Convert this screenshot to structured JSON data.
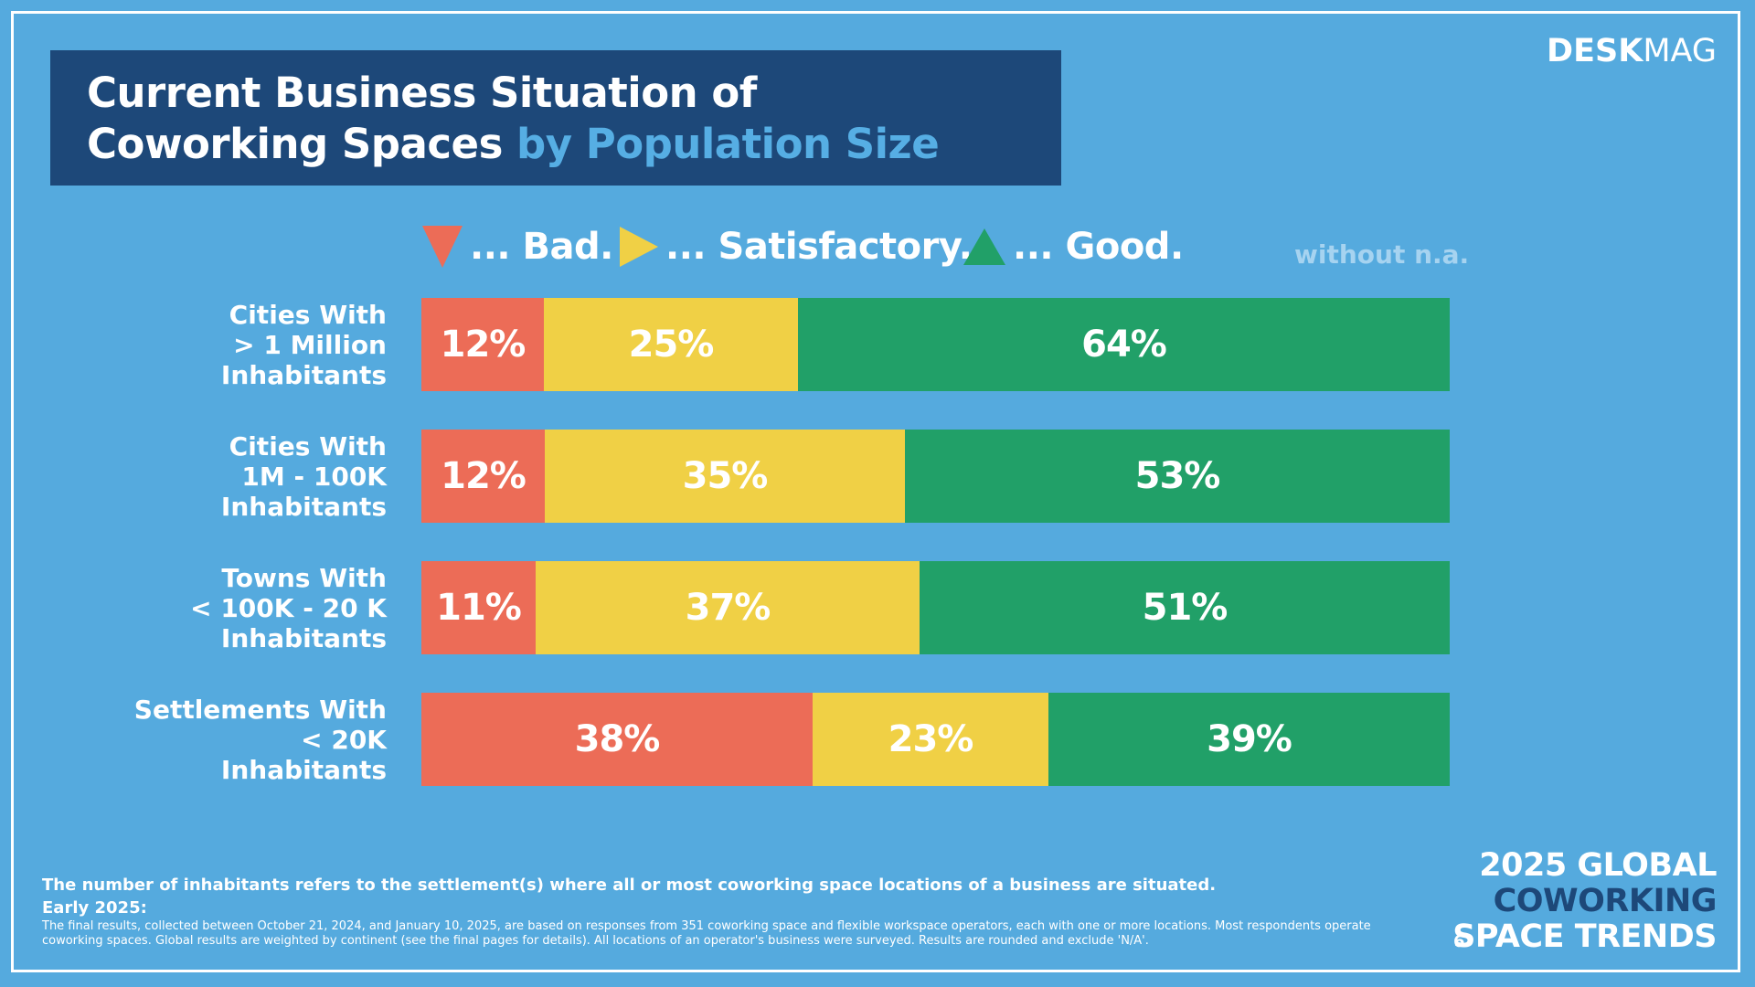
{
  "brand": {
    "part1": "DESK",
    "part2": "MAG"
  },
  "title": {
    "line1": "Current Business Situation of",
    "line2_main": "Coworking Spaces",
    "line2_accent": " by Population Size"
  },
  "legend": [
    {
      "label": "... Bad.",
      "icon": "triangle-down-icon",
      "color": "#ec6c57"
    },
    {
      "label": "... Satisfactory.",
      "icon": "triangle-right-icon",
      "color": "#f0d045"
    },
    {
      "label": "... Good.",
      "icon": "triangle-up-icon",
      "color": "#21a068"
    }
  ],
  "note": "without n.a.",
  "colors": {
    "background": "#55aade",
    "title_box": "#1d4879",
    "bad": "#ec6c57",
    "satisfactory": "#f0d045",
    "good": "#21a068",
    "accent": "#56aee4"
  },
  "chart_data": {
    "type": "bar",
    "orientation": "horizontal",
    "stacked": true,
    "normalized": true,
    "title": "Current Business Situation of Coworking Spaces by Population Size",
    "categories": [
      [
        "Cities With",
        "> 1 Million",
        "Inhabitants"
      ],
      [
        "Cities With",
        "1M - 100K",
        "Inhabitants"
      ],
      [
        "Towns With",
        "< 100K - 20 K",
        "Inhabitants"
      ],
      [
        "Settlements With",
        "< 20K",
        "Inhabitants"
      ]
    ],
    "series": [
      {
        "name": "Bad",
        "values": [
          12,
          12,
          11,
          38
        ],
        "labels": [
          "12%",
          "12%",
          "11%",
          "38%"
        ]
      },
      {
        "name": "Satisfactory",
        "values": [
          25,
          35,
          37,
          23
        ],
        "labels": [
          "25%",
          "35%",
          "37%",
          "23%"
        ]
      },
      {
        "name": "Good",
        "values": [
          64,
          53,
          51,
          39
        ],
        "labels": [
          "64%",
          "53%",
          "51%",
          "39%"
        ]
      }
    ],
    "xlim": [
      0,
      100
    ],
    "grid": false
  },
  "footnotes": {
    "line1": "The number of inhabitants refers to the settlement(s) where all or most coworking space locations of a business are situated.",
    "line2": "Early 2025:",
    "line3": "The final results, collected between October 21, 2024, and January 10, 2025, are based on responses from 351 coworking space and flexible workspace operators, each with one or more locations. Most respondents operate coworking spaces. Global results are weighted by continent (see the final pages for details). All locations of an operator's business were surveyed. Results are rounded and exclude 'N/A'."
  },
  "page_number": "6",
  "report": {
    "line1": "2025 GLOBAL",
    "line2": "COWORKING",
    "line3": "SPACE TRENDS"
  }
}
